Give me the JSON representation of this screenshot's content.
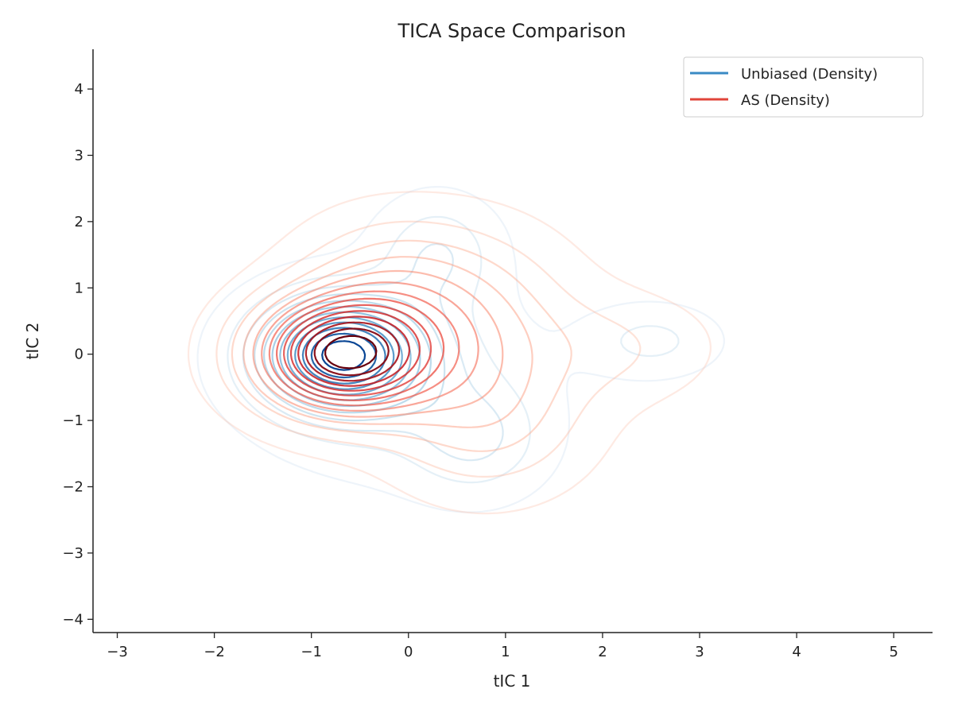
{
  "chart_data": {
    "type": "contour",
    "title": "TICA Space Comparison",
    "xlabel": "tIC 1",
    "ylabel": "tIC 2",
    "xlim": [
      -3.25,
      5.4
    ],
    "ylim": [
      -4.2,
      4.6
    ],
    "xticks": [
      -3,
      -2,
      -1,
      0,
      1,
      2,
      3,
      4,
      5
    ],
    "yticks": [
      -4,
      -3,
      -2,
      -1,
      0,
      1,
      2,
      3,
      4
    ],
    "xtick_labels": [
      "−3",
      "−2",
      "−1",
      "0",
      "1",
      "2",
      "3",
      "4",
      "5"
    ],
    "ytick_labels": [
      "−4",
      "−3",
      "−2",
      "−1",
      "0",
      "1",
      "2",
      "3",
      "4"
    ],
    "grid": false,
    "legend_position": "top-right",
    "series": [
      {
        "name": "Unbiased (Density)",
        "color": "#3a8ac4",
        "colormap": "Blues",
        "levels": 12,
        "modes": [
          {
            "x": -0.7,
            "y": 0.0,
            "sx": 0.55,
            "sy": 0.55,
            "w": 1.0
          },
          {
            "x": 0.3,
            "y": 1.5,
            "sx": 0.4,
            "sy": 0.55,
            "w": 0.22
          },
          {
            "x": 0.7,
            "y": -1.3,
            "sx": 0.45,
            "sy": 0.55,
            "w": 0.2
          },
          {
            "x": 2.5,
            "y": 0.2,
            "sx": 0.45,
            "sy": 0.35,
            "w": 0.16
          },
          {
            "x": -0.1,
            "y": -0.4,
            "sx": 0.9,
            "sy": 0.9,
            "w": 0.18
          }
        ]
      },
      {
        "name": "AS (Density)",
        "color": "#e0443a",
        "colormap": "Reds",
        "levels": 14,
        "modes": [
          {
            "x": -0.68,
            "y": 0.0,
            "sx": 0.62,
            "sy": 0.6,
            "w": 1.0
          },
          {
            "x": 0.5,
            "y": 0.6,
            "sx": 0.75,
            "sy": 0.85,
            "w": 0.28
          },
          {
            "x": 0.8,
            "y": -0.9,
            "sx": 0.7,
            "sy": 0.8,
            "w": 0.22
          },
          {
            "x": 2.2,
            "y": 0.1,
            "sx": 0.65,
            "sy": 0.55,
            "w": 0.1
          },
          {
            "x": -0.3,
            "y": 1.3,
            "sx": 0.6,
            "sy": 0.6,
            "w": 0.12
          }
        ]
      }
    ]
  }
}
